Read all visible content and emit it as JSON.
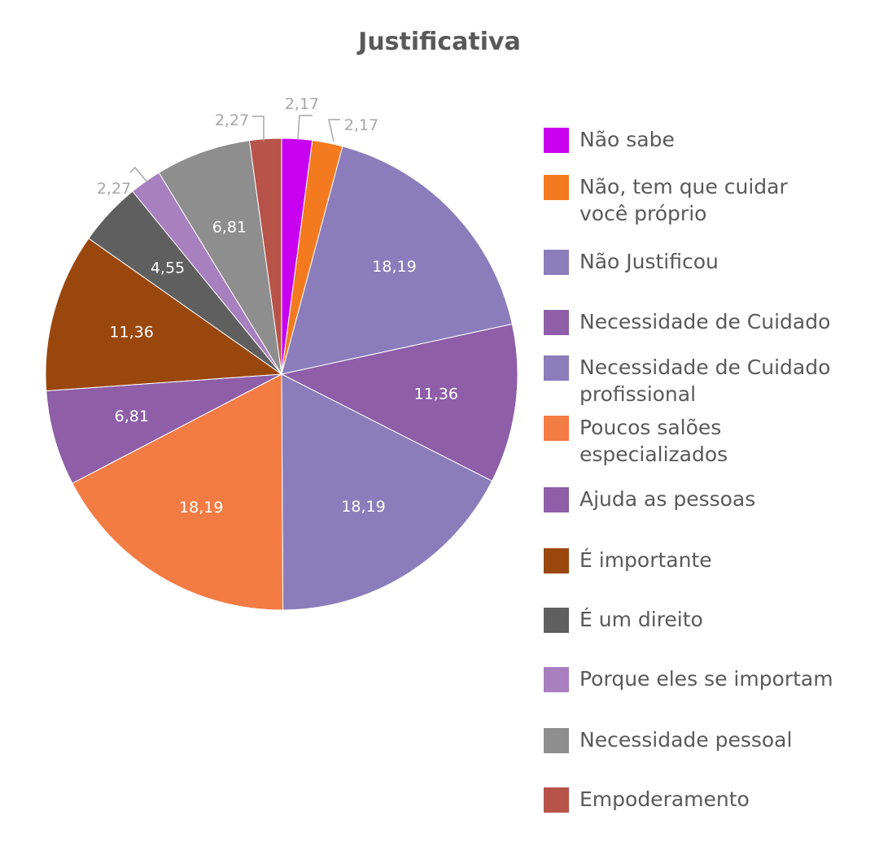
{
  "chart_data": {
    "type": "pie",
    "title": "Justificativa",
    "legend_position": "right",
    "slices": [
      {
        "name": "Não sabe",
        "value": 2.17,
        "label": "2,17",
        "color": "#c800f0",
        "label_inside": false
      },
      {
        "name": "Não, tem que cuidar\nvocê próprio",
        "value": 2.17,
        "label": "2,17",
        "color": "#f47a20",
        "label_inside": false
      },
      {
        "name": "Não Justificou",
        "value": 18.19,
        "label": "18,19",
        "color": "#8b7dbb",
        "label_inside": true
      },
      {
        "name": "Necessidade de Cuidado",
        "value": 11.36,
        "label": "11,36",
        "color": "#8e5ea8",
        "label_inside": true
      },
      {
        "name": "Necessidade de Cuidado\nprofissional",
        "value": 18.19,
        "label": "18,19",
        "color": "#8b7dbb",
        "label_inside": true
      },
      {
        "name": "Poucos salões\nespecializados",
        "value": 18.19,
        "label": "18,19",
        "color": "#f27c44",
        "label_inside": true
      },
      {
        "name": "Ajuda as pessoas",
        "value": 6.81,
        "label": "6,81",
        "color": "#8e5ea8",
        "label_inside": true
      },
      {
        "name": "É importante",
        "value": 11.36,
        "label": "11,36",
        "color": "#9a470e",
        "label_inside": true
      },
      {
        "name": "É um direito",
        "value": 4.55,
        "label": "4,55",
        "color": "#5f5f5f",
        "label_inside": true
      },
      {
        "name": "Porque eles se importam",
        "value": 2.27,
        "label": "2,27",
        "color": "#a87fbf",
        "label_inside": false
      },
      {
        "name": "Necessidade pessoal",
        "value": 6.81,
        "label": "6,81",
        "color": "#8e8e8e",
        "label_inside": true
      },
      {
        "name": "Empoderamento",
        "value": 2.27,
        "label": "2,27",
        "color": "#b8534a",
        "label_inside": false
      }
    ]
  }
}
